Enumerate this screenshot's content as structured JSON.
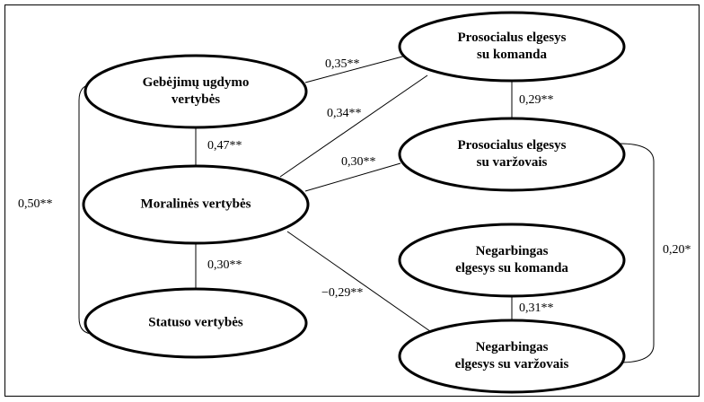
{
  "nodes": [
    {
      "lines": [
        "Gebėjimų ugdymo",
        "vertybės"
      ]
    },
    {
      "lines": [
        "Moralinės vertybės"
      ]
    },
    {
      "lines": [
        "Statuso vertybės"
      ]
    },
    {
      "lines": [
        "Prosocialus elgesys",
        "su komanda"
      ]
    },
    {
      "lines": [
        "Prosocialus elgesys",
        "su varžovais"
      ]
    },
    {
      "lines": [
        "Negarbingas",
        "elgesys su komanda"
      ]
    },
    {
      "lines": [
        "Negarbingas",
        "elgesys su varžovais"
      ]
    }
  ],
  "edges": [
    {
      "label": "0,35**"
    },
    {
      "label": "0,34**"
    },
    {
      "label": "0,30**"
    },
    {
      "label": "−0,29**"
    },
    {
      "label": "0,47**"
    },
    {
      "label": "0,30**"
    },
    {
      "label": "0,29**"
    },
    {
      "label": "0,31**"
    },
    {
      "label": "0,50**"
    },
    {
      "label": "0,20*"
    }
  ]
}
